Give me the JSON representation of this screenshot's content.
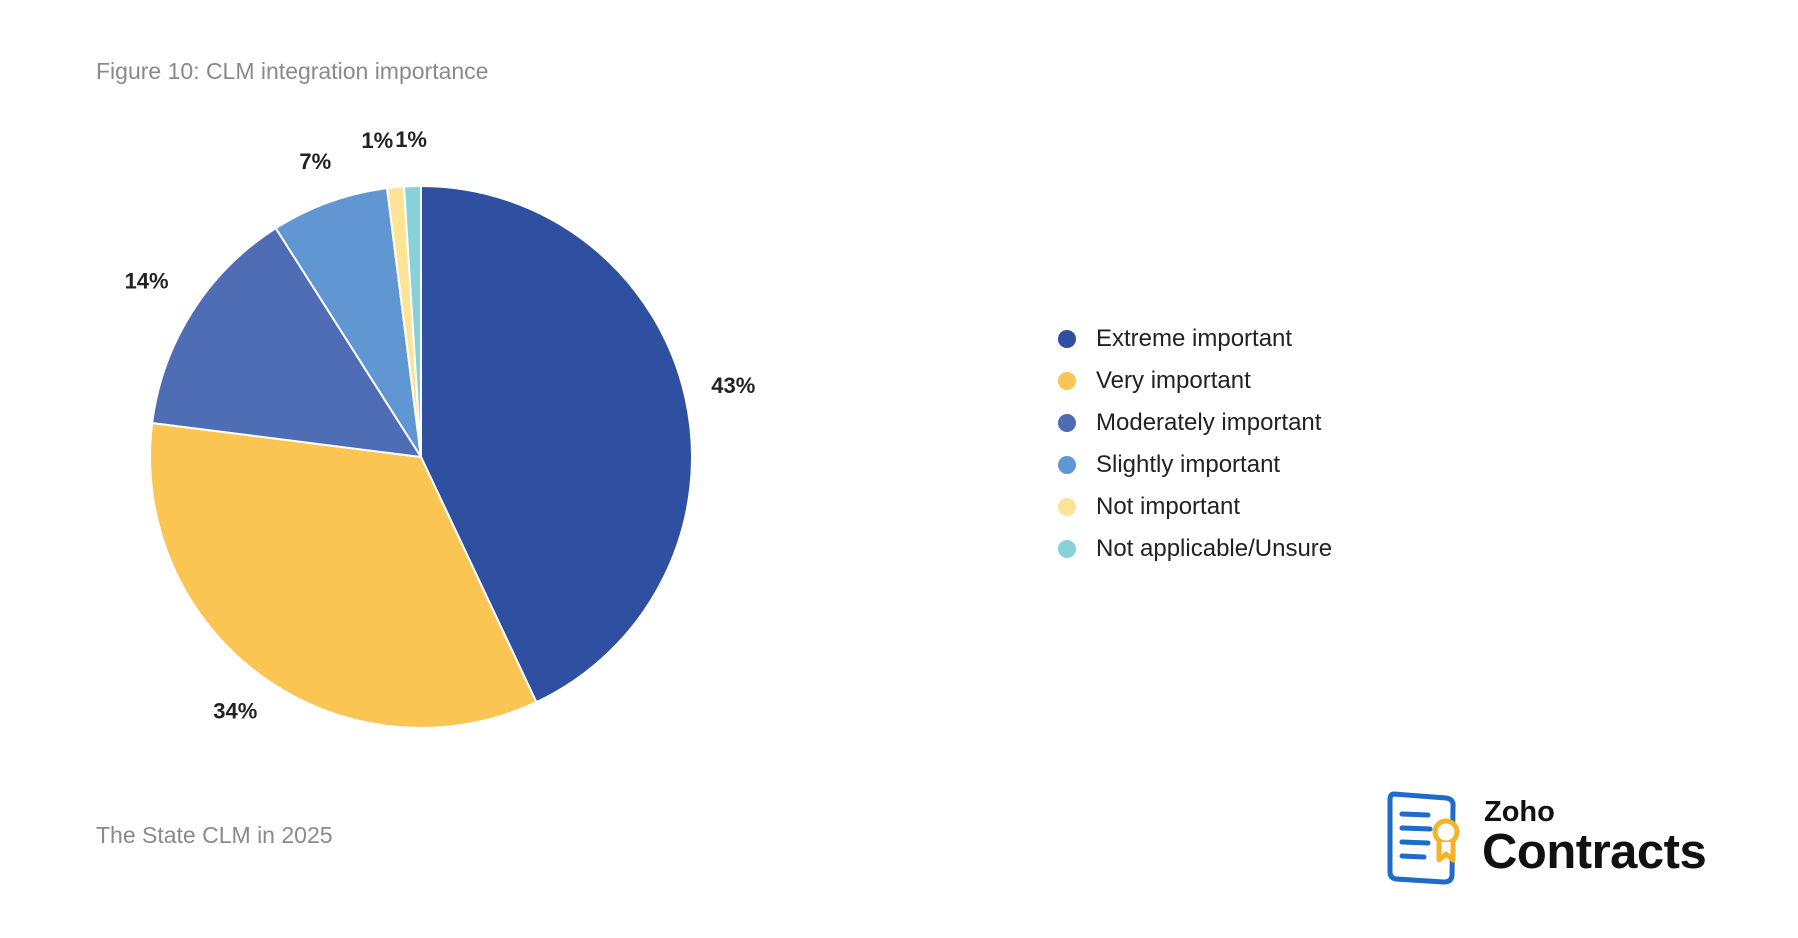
{
  "figure_title": "Figure 10: CLM integration importance",
  "footer": "The State CLM in 2025",
  "logo": {
    "brand": "Zoho",
    "product": "Contracts",
    "icon": "contract-document-with-ribbon-icon",
    "icon_blue": "#1e6bc8",
    "icon_gold": "#f5b325"
  },
  "chart_data": {
    "type": "pie",
    "title": "CLM integration importance",
    "start_angle": "12 o'clock",
    "direction": "clockwise",
    "legend_position": "right",
    "slices": [
      {
        "name": "Extreme important",
        "value": 43,
        "label": "43%",
        "color": "#2f50a0"
      },
      {
        "name": "Very important",
        "value": 34,
        "label": "34%",
        "color": "#fbc553"
      },
      {
        "name": "Moderately important",
        "value": 14,
        "label": "14%",
        "color": "#4f6db4"
      },
      {
        "name": "Slightly important",
        "value": 7,
        "label": "7%",
        "color": "#6096d2"
      },
      {
        "name": "Not important",
        "value": 1,
        "label": "1%",
        "color": "#fce497"
      },
      {
        "name": "Not applicable/Unsure",
        "value": 1,
        "label": "1%",
        "color": "#87d2d8"
      }
    ]
  }
}
